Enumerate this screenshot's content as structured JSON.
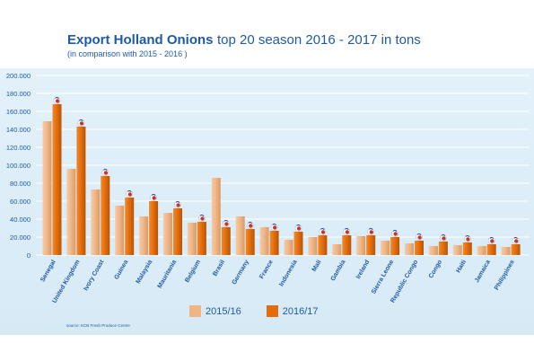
{
  "title": {
    "strong": "Export Holland Onions",
    "rest": "top 20 season 2016 - 2017 in tons"
  },
  "subtitle": "(in comparison with 2015 - 2016 )",
  "source": "source: KCB Fresh Produce Centre",
  "colors": {
    "background": "#ddeef8",
    "grid": "#ffffff",
    "series_2015": "#efb585",
    "series_2016": "#e36c0a",
    "axis_text": "#1f5aa6"
  },
  "chart_data": {
    "type": "bar",
    "categories": [
      "Senegal",
      "United Kingdom",
      "Ivory Coast",
      "Guinea",
      "Malaysia",
      "Mauritania",
      "Belgium",
      "Brasil",
      "Germany",
      "France",
      "Indonesia",
      "Mali",
      "Gambia",
      "Ireland",
      "Sierra Leone",
      "Republic Congo",
      "Congo",
      "Haiti",
      "Jamaica",
      "Philippines"
    ],
    "series": [
      {
        "name": "2015/16",
        "values": [
          149000,
          96000,
          73000,
          55000,
          43000,
          47000,
          36000,
          86000,
          43000,
          31000,
          17000,
          20000,
          12000,
          21000,
          16000,
          13000,
          10000,
          11000,
          10000,
          9000
        ]
      },
      {
        "name": "2016/17",
        "values": [
          168000,
          143000,
          88000,
          64000,
          60000,
          52000,
          37000,
          31000,
          29000,
          27000,
          26000,
          22000,
          22000,
          22000,
          20000,
          16000,
          15000,
          14000,
          12000,
          12000
        ]
      }
    ],
    "yticks": [
      "0",
      "20.000",
      "40.000",
      "60.000",
      "80.000",
      "100.000",
      "120.000",
      "140.000",
      "160.000",
      "180.000",
      "200.000"
    ],
    "ylim": [
      0,
      200000
    ],
    "grid": true,
    "legend": "bottom"
  }
}
